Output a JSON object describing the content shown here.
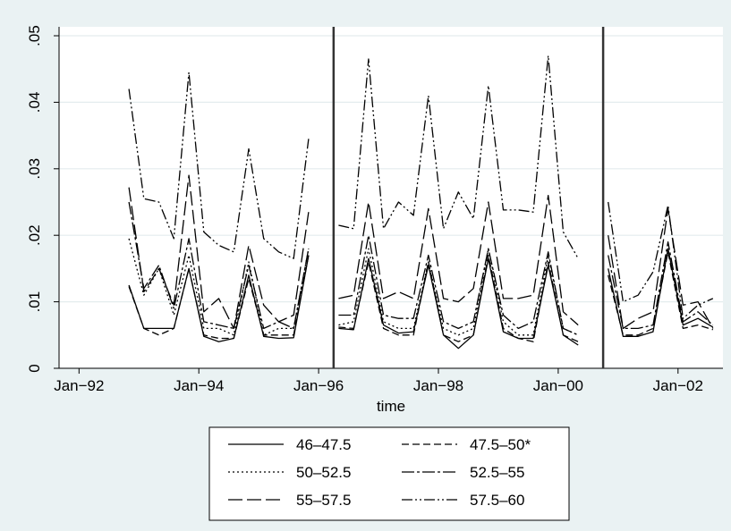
{
  "chart_data": {
    "type": "line",
    "title": "",
    "xlabel": "time",
    "ylabel": "",
    "ylim": [
      0,
      0.05
    ],
    "xlim": [
      "1991-09",
      "2002-10"
    ],
    "x_ticks": [
      {
        "date": "1992-01",
        "label": "Jan−92"
      },
      {
        "date": "1994-01",
        "label": "Jan−94"
      },
      {
        "date": "1996-01",
        "label": "Jan−96"
      },
      {
        "date": "1998-01",
        "label": "Jan−98"
      },
      {
        "date": "2000-01",
        "label": "Jan−00"
      },
      {
        "date": "2002-01",
        "label": "Jan−02"
      }
    ],
    "y_ticks": [
      {
        "value": 0,
        "label": "0"
      },
      {
        "value": 0.01,
        "label": ".01"
      },
      {
        "value": 0.02,
        "label": ".02"
      },
      {
        "value": 0.03,
        "label": ".03"
      },
      {
        "value": 0.04,
        "label": ".04"
      },
      {
        "value": 0.05,
        "label": ".05"
      }
    ],
    "grid": true,
    "vertical_lines": [
      "1996-04",
      "2000-10"
    ],
    "legend_position": "bottom",
    "background_color": "#eaf2f3",
    "plot_background": "#ffffff",
    "segments": [
      [
        "1992-11",
        "1993-02",
        "1993-05",
        "1993-08",
        "1993-11",
        "1994-02",
        "1994-05",
        "1994-08",
        "1994-11",
        "1995-02",
        "1995-05",
        "1995-08",
        "1995-11"
      ],
      [
        "1996-05",
        "1996-08",
        "1996-11",
        "1997-02",
        "1997-05",
        "1997-08",
        "1997-11",
        "1998-02",
        "1998-05",
        "1998-08",
        "1998-11",
        "1999-02",
        "1999-05",
        "1999-08",
        "1999-11",
        "2000-02",
        "2000-05"
      ],
      [
        "2000-11",
        "2001-02",
        "2001-05",
        "2001-08",
        "2001-11",
        "2002-02",
        "2002-05",
        "2002-08"
      ]
    ],
    "series": [
      {
        "name": "46–47.5",
        "dash": "",
        "values": [
          [
            0.0125,
            0.006,
            0.006,
            0.006,
            0.015,
            0.0048,
            0.004,
            0.0045,
            0.014,
            0.0048,
            0.0045,
            0.0046,
            0.017
          ],
          [
            0.006,
            0.0058,
            0.0165,
            0.0065,
            0.0053,
            0.0055,
            0.0155,
            0.005,
            0.003,
            0.005,
            0.0165,
            0.0055,
            0.0045,
            0.0045,
            0.0155,
            0.005,
            0.0035
          ],
          [
            0.015,
            0.0048,
            0.0048,
            0.0055,
            0.018,
            0.0065,
            0.0075,
            0.0062
          ]
        ]
      },
      {
        "name": "47.5–50*",
        "dash": "8,4",
        "values": [
          [
            0.0123,
            0.006,
            0.005,
            0.006,
            0.015,
            0.005,
            0.0045,
            0.0045,
            0.0135,
            0.005,
            0.005,
            0.005,
            0.017
          ],
          [
            0.0062,
            0.006,
            0.016,
            0.006,
            0.005,
            0.005,
            0.016,
            0.005,
            0.004,
            0.005,
            0.017,
            0.006,
            0.0045,
            0.004,
            0.016,
            0.005,
            0.004
          ],
          [
            0.014,
            0.005,
            0.005,
            0.006,
            0.0175,
            0.006,
            0.0065,
            0.0058
          ]
        ]
      },
      {
        "name": "50–52.5",
        "dash": "2,3",
        "values": [
          [
            0.0195,
            0.011,
            0.015,
            0.008,
            0.017,
            0.006,
            0.006,
            0.005,
            0.016,
            0.005,
            0.006,
            0.006,
            0.018
          ],
          [
            0.0065,
            0.007,
            0.018,
            0.007,
            0.006,
            0.006,
            0.016,
            0.006,
            0.005,
            0.006,
            0.018,
            0.007,
            0.005,
            0.005,
            0.017,
            0.006,
            0.005
          ]
        ]
      },
      {
        "name": "52.5–55",
        "dash": "14,3,3,3",
        "values": [
          [
            0.025,
            0.012,
            0.0155,
            0.009,
            0.0195,
            0.007,
            0.0065,
            0.006,
            0.0155,
            0.006,
            0.007,
            0.006,
            0.018
          ],
          [
            0.008,
            0.008,
            0.02,
            0.008,
            0.0075,
            0.0075,
            0.017,
            0.007,
            0.006,
            0.007,
            0.018,
            0.008,
            0.006,
            0.007,
            0.0175,
            0.006,
            0.005
          ],
          [
            0.017,
            0.006,
            0.006,
            0.0065,
            0.019,
            0.007,
            0.0085,
            0.0065
          ]
        ]
      },
      {
        "name": "55–57.5",
        "dash": "16,5",
        "values": [
          [
            0.0272,
            0.0115,
            0.015,
            0.0095,
            0.029,
            0.0085,
            0.0105,
            0.006,
            0.0185,
            0.0095,
            0.007,
            0.008,
            0.0235
          ],
          [
            0.0105,
            0.011,
            0.025,
            0.0105,
            0.0115,
            0.0105,
            0.024,
            0.0105,
            0.01,
            0.012,
            0.025,
            0.0105,
            0.0105,
            0.011,
            0.026,
            0.0085,
            0.0065
          ],
          [
            0.02,
            0.006,
            0.0075,
            0.0085,
            0.024,
            0.0095,
            0.01,
            0.006
          ]
        ]
      },
      {
        "name": "57.5–60",
        "dash": "12,3,2,3,2,3",
        "values": [
          [
            0.042,
            0.0255,
            0.025,
            0.0195,
            0.0445,
            0.0205,
            0.0185,
            0.0175,
            0.033,
            0.0195,
            0.0175,
            0.0165,
            0.0345
          ],
          [
            0.0215,
            0.021,
            0.0465,
            0.021,
            0.025,
            0.023,
            0.041,
            0.021,
            0.0265,
            0.0225,
            0.0425,
            0.0238,
            0.0238,
            0.0235,
            0.047,
            0.0205,
            0.0165
          ],
          [
            0.025,
            0.01,
            0.011,
            0.0145,
            0.0245,
            0.0075,
            0.0095,
            0.0105
          ]
        ]
      }
    ]
  }
}
